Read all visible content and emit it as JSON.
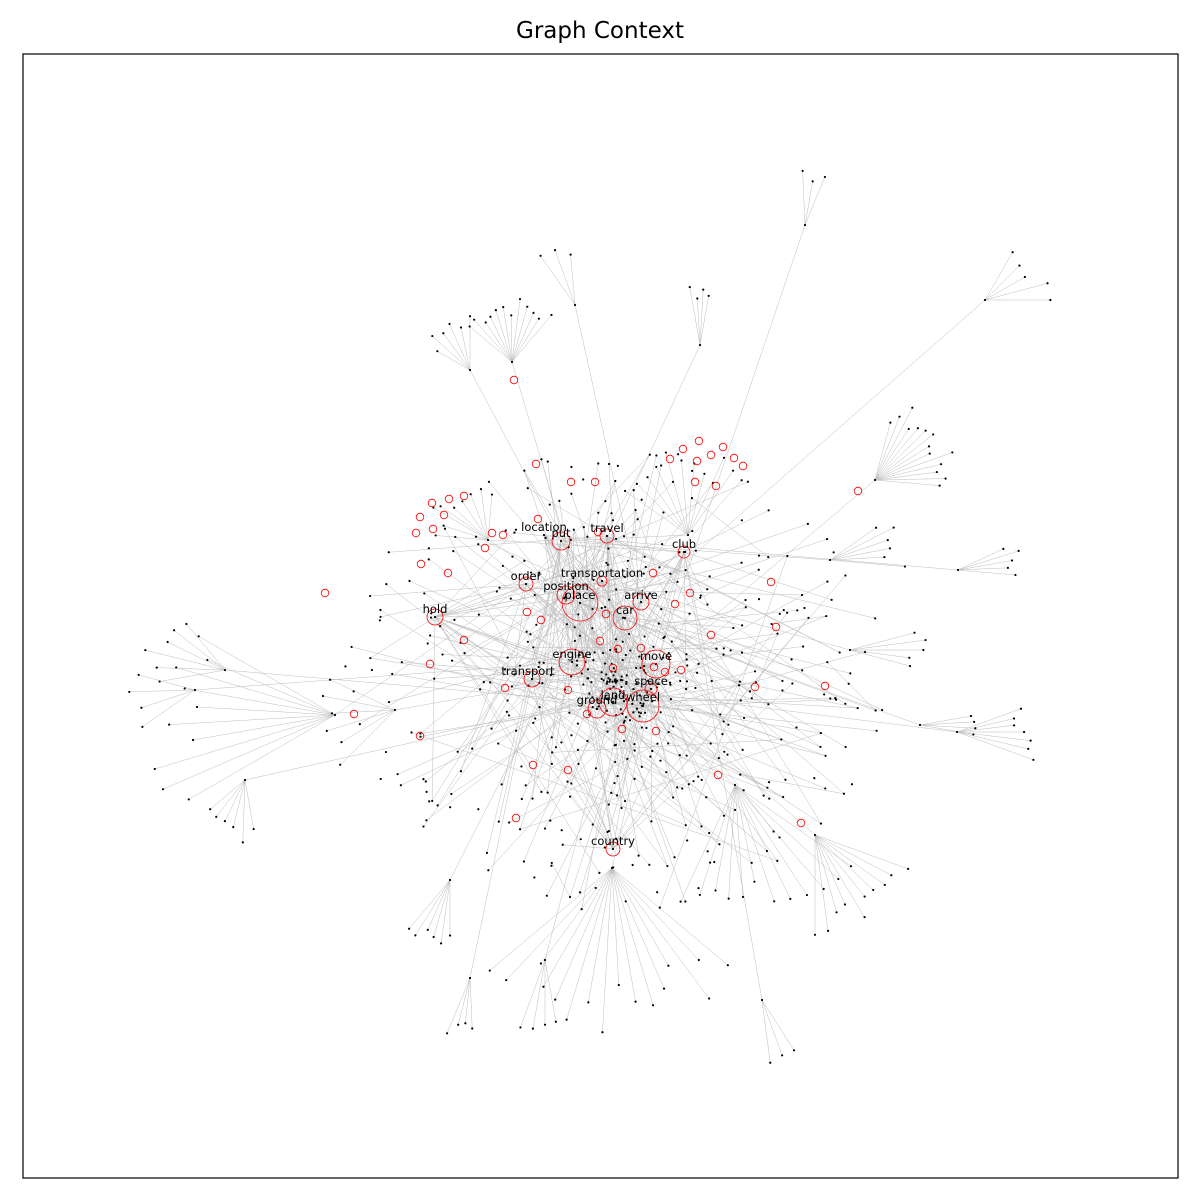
{
  "title": "Graph Context",
  "colors": {
    "edge": "#bdbdbd",
    "node": "#000000",
    "highlight": "#ff0000",
    "frame": "#000000",
    "background": "#ffffff"
  },
  "labels": [
    {
      "id": "location",
      "text": "location"
    },
    {
      "id": "put",
      "text": "put"
    },
    {
      "id": "travel",
      "text": "travel"
    },
    {
      "id": "club",
      "text": "club"
    },
    {
      "id": "order",
      "text": "order"
    },
    {
      "id": "transportation",
      "text": "transportation"
    },
    {
      "id": "position",
      "text": "position"
    },
    {
      "id": "place",
      "text": "place"
    },
    {
      "id": "arrive",
      "text": "arrive"
    },
    {
      "id": "hold",
      "text": "hold"
    },
    {
      "id": "car",
      "text": "car"
    },
    {
      "id": "engine",
      "text": "engine"
    },
    {
      "id": "move",
      "text": "move"
    },
    {
      "id": "transport",
      "text": "transport"
    },
    {
      "id": "space",
      "text": "space"
    },
    {
      "id": "land",
      "text": "land"
    },
    {
      "id": "ground",
      "text": "ground"
    },
    {
      "id": "wheel",
      "text": "wheel"
    },
    {
      "id": "country",
      "text": "country"
    }
  ]
}
